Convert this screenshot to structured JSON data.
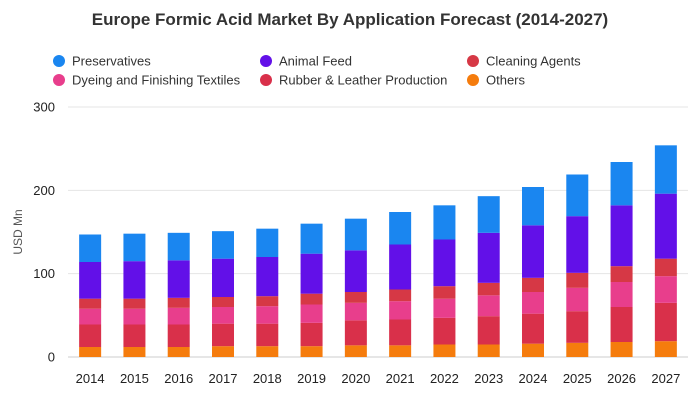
{
  "chart_data": {
    "type": "bar",
    "stacked": true,
    "title": "Europe Formic Acid Market By Application Forecast (2014-2027)",
    "xlabel": "",
    "ylabel": "USD Mn",
    "ylim": [
      0,
      300
    ],
    "yticks": [
      0,
      100,
      200,
      300
    ],
    "grid": true,
    "legend_position": "top",
    "categories": [
      "2014",
      "2015",
      "2016",
      "2017",
      "2018",
      "2019",
      "2020",
      "2021",
      "2022",
      "2023",
      "2024",
      "2025",
      "2026",
      "2027"
    ],
    "series": [
      {
        "name": "Others",
        "color": "#F57C0D",
        "values": [
          12,
          12,
          12,
          13,
          13,
          13,
          14,
          14,
          15,
          15,
          16,
          17,
          18,
          19
        ]
      },
      {
        "name": "Rubber & Leather Production",
        "color": "#D9304A",
        "values": [
          27,
          27,
          27,
          27,
          27,
          28,
          30,
          31,
          32,
          34,
          36,
          38,
          42,
          46
        ]
      },
      {
        "name": "Dyeing and Finishing Textiles",
        "color": "#E83E8C",
        "values": [
          19,
          19,
          20,
          20,
          21,
          22,
          21,
          22,
          23,
          25,
          26,
          28,
          30,
          32
        ]
      },
      {
        "name": "Cleaning Agents",
        "color": "#D63845",
        "values": [
          12,
          12,
          12,
          12,
          12,
          13,
          13,
          14,
          15,
          15,
          17,
          18,
          19,
          21
        ]
      },
      {
        "name": "Animal Feed",
        "color": "#6210E8",
        "values": [
          44,
          45,
          45,
          46,
          47,
          48,
          50,
          54,
          56,
          60,
          63,
          68,
          73,
          78
        ]
      },
      {
        "name": "Preservatives",
        "color": "#1A86F0",
        "values": [
          33,
          33,
          33,
          33,
          34,
          36,
          38,
          39,
          41,
          44,
          46,
          50,
          52,
          58
        ]
      }
    ]
  },
  "legend_rows": [
    [
      "Preservatives",
      "Animal Feed",
      "Cleaning Agents"
    ],
    [
      "Dyeing and Finishing Textiles",
      "Rubber & Leather Production",
      "Others"
    ]
  ]
}
